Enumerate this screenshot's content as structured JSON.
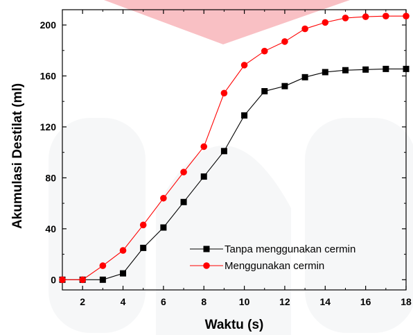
{
  "chart_data": {
    "type": "line",
    "title": "",
    "xlabel": "Waktu (s)",
    "ylabel": "Akumulasi Destilat (ml)",
    "xlim": [
      1,
      18
    ],
    "ylim": [
      -8,
      212
    ],
    "x_ticks": [
      2,
      4,
      6,
      8,
      10,
      12,
      14,
      16,
      18
    ],
    "y_ticks": [
      0,
      40,
      80,
      120,
      160,
      200
    ],
    "grid": false,
    "legend_position": "bottom-right",
    "x": [
      1,
      2,
      3,
      4,
      5,
      6,
      7,
      8,
      9,
      10,
      11,
      12,
      13,
      14,
      15,
      16,
      17,
      18
    ],
    "series": [
      {
        "name": "Tanpa menggunakan cermin",
        "color": "#000000",
        "marker": "square",
        "values": [
          0,
          0,
          0,
          5,
          25,
          41,
          61,
          81,
          101,
          129,
          148,
          152,
          159,
          163,
          164.5,
          165,
          165.5,
          165.5
        ]
      },
      {
        "name": "Menggunakan cermin",
        "color": "#ff0000",
        "marker": "circle",
        "values": [
          0,
          0,
          11,
          23,
          43,
          64,
          84.5,
          104.5,
          146.5,
          168.5,
          179.5,
          187,
          197,
          202,
          205.5,
          206.5,
          207,
          207
        ]
      }
    ]
  }
}
